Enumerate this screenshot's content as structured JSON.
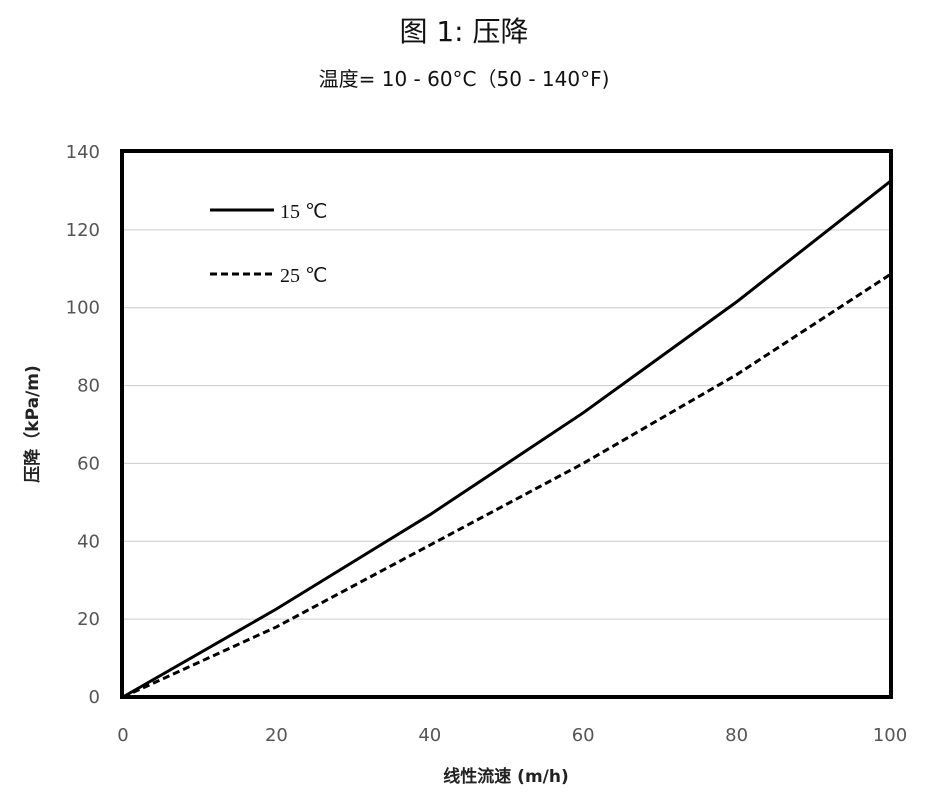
{
  "chart_data": {
    "type": "line",
    "title": "图 1:  压降",
    "subtitle": "温度= 10 - 60°C（50 - 140°F)",
    "xlabel": "线性流速 (m/h)",
    "ylabel": "压降（kPa/m)",
    "xlim": [
      0,
      100
    ],
    "ylim": [
      0,
      140
    ],
    "xticks": [
      "0",
      "20",
      "40",
      "60",
      "80",
      "100"
    ],
    "yticks": [
      "0",
      "20",
      "40",
      "60",
      "80",
      "100",
      "120",
      "140"
    ],
    "grid": true,
    "legend_position": "top-left",
    "x": [
      0,
      20,
      40,
      60,
      80,
      100
    ],
    "series": [
      {
        "name": "15 ℃",
        "style": "solid",
        "values": [
          0,
          22.6,
          46.8,
          73,
          101.5,
          132.4
        ]
      },
      {
        "name": "25 ℃",
        "style": "dashed",
        "values": [
          0,
          18,
          39,
          60,
          82.8,
          108.5
        ]
      }
    ]
  }
}
